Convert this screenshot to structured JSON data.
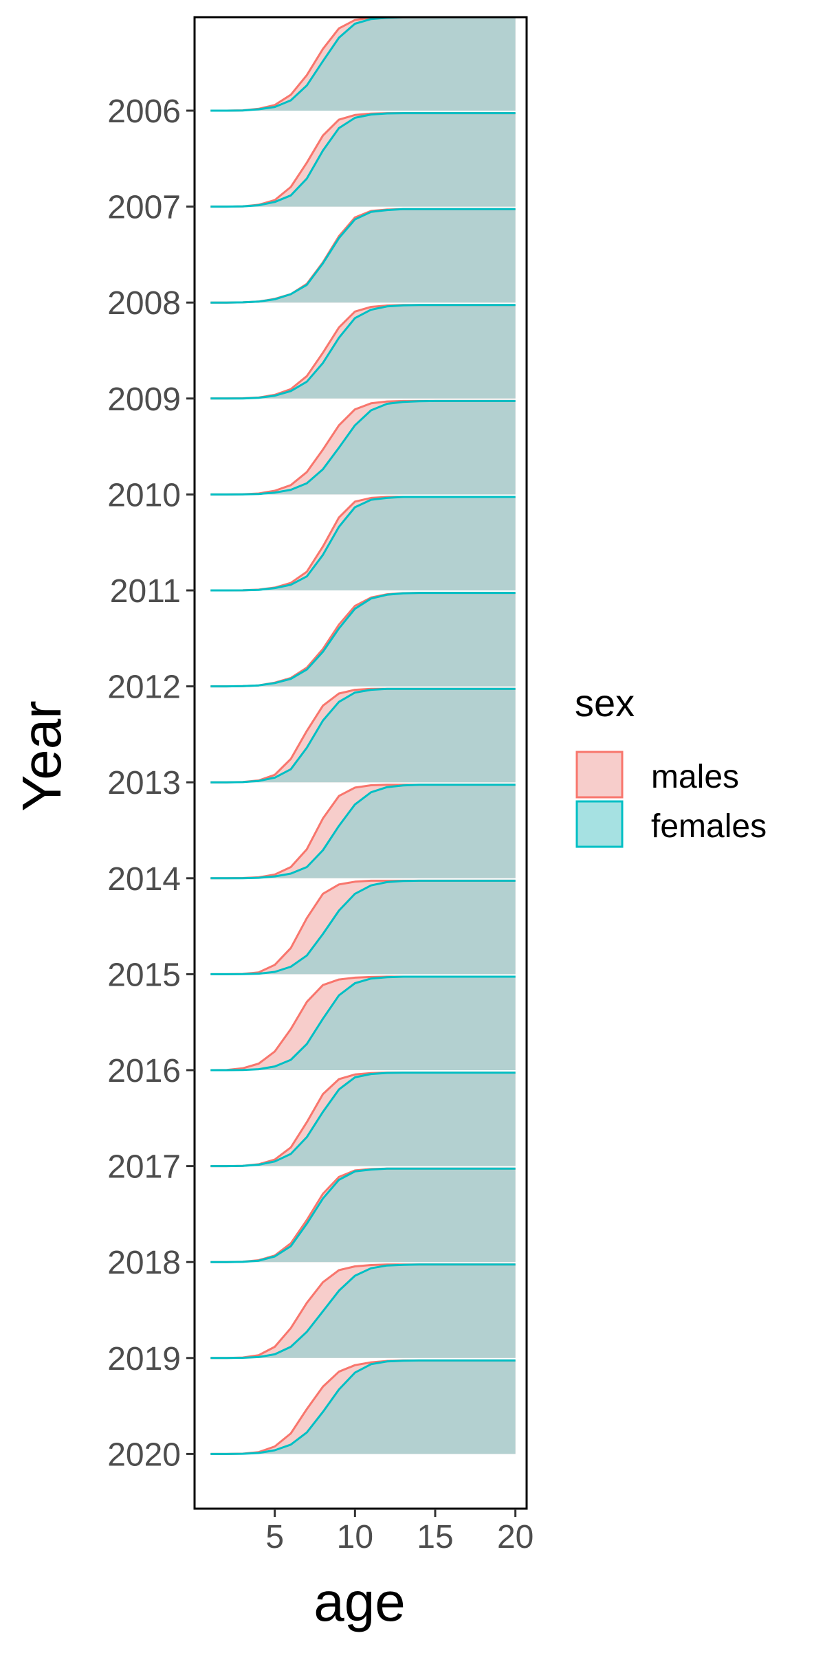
{
  "chart_data": {
    "type": "area",
    "subtype": "ridgeline",
    "title": "",
    "xlabel": "age",
    "ylabel": "Year",
    "x_ticks": [
      5,
      10,
      15,
      20
    ],
    "xlim": [
      0,
      20.7
    ],
    "years": [
      "2006",
      "2007",
      "2008",
      "2009",
      "2010",
      "2011",
      "2012",
      "2013",
      "2014",
      "2015",
      "2016",
      "2017",
      "2018",
      "2019",
      "2020"
    ],
    "ages": [
      1,
      2,
      3,
      4,
      5,
      6,
      7,
      8,
      9,
      10,
      11,
      12,
      13,
      14,
      15,
      16,
      17,
      18,
      19,
      20
    ],
    "legend": {
      "title": "sex",
      "position": "right",
      "entries": [
        {
          "name": "males",
          "line_color": "#F8766D",
          "fill_color": "#F7CDCB"
        },
        {
          "name": "females",
          "line_color": "#00BFC4",
          "fill_color": "#A6E1E2"
        }
      ]
    },
    "overlap_fill_color": "#B3D0D0",
    "series": [
      {
        "year": "2006",
        "males": [
          0,
          0,
          0.003,
          0.02,
          0.06,
          0.17,
          0.38,
          0.66,
          0.88,
          0.97,
          0.995,
          1,
          1,
          1,
          1,
          1,
          1,
          1,
          1,
          1
        ],
        "females": [
          0,
          0,
          0.002,
          0.015,
          0.04,
          0.11,
          0.27,
          0.53,
          0.78,
          0.93,
          0.98,
          0.995,
          1,
          1,
          1,
          1,
          1,
          1,
          1,
          1
        ]
      },
      {
        "year": "2007",
        "males": [
          0,
          0,
          0.003,
          0.02,
          0.07,
          0.21,
          0.47,
          0.76,
          0.93,
          0.98,
          0.995,
          1,
          1,
          1,
          1,
          1,
          1,
          1,
          1,
          1
        ],
        "females": [
          0,
          0,
          0.002,
          0.015,
          0.05,
          0.12,
          0.3,
          0.6,
          0.84,
          0.95,
          0.985,
          0.997,
          1,
          1,
          1,
          1,
          1,
          1,
          1,
          1
        ]
      },
      {
        "year": "2008",
        "males": [
          0,
          0,
          0.002,
          0.01,
          0.04,
          0.09,
          0.2,
          0.43,
          0.71,
          0.91,
          0.98,
          0.995,
          1,
          1,
          1,
          1,
          1,
          1,
          1,
          1
        ],
        "females": [
          0,
          0,
          0.002,
          0.01,
          0.035,
          0.09,
          0.19,
          0.42,
          0.69,
          0.89,
          0.97,
          0.99,
          1,
          1,
          1,
          1,
          1,
          1,
          1,
          1
        ]
      },
      {
        "year": "2009",
        "males": [
          0,
          0,
          0.002,
          0.01,
          0.04,
          0.1,
          0.24,
          0.49,
          0.76,
          0.93,
          0.98,
          0.995,
          1,
          1,
          1,
          1,
          1,
          1,
          1,
          1
        ],
        "females": [
          0,
          0,
          0.001,
          0.008,
          0.03,
          0.08,
          0.18,
          0.38,
          0.65,
          0.86,
          0.95,
          0.985,
          0.997,
          1,
          1,
          1,
          1,
          1,
          1,
          1
        ]
      },
      {
        "year": "2010",
        "males": [
          0,
          0,
          0.002,
          0.01,
          0.04,
          0.1,
          0.24,
          0.48,
          0.74,
          0.91,
          0.975,
          0.995,
          1,
          1,
          1,
          1,
          1,
          1,
          1,
          1
        ],
        "females": [
          0,
          0,
          0.001,
          0.005,
          0.02,
          0.05,
          0.12,
          0.27,
          0.5,
          0.74,
          0.9,
          0.97,
          0.99,
          0.997,
          1,
          1,
          1,
          1,
          1,
          1
        ]
      },
      {
        "year": "2011",
        "males": [
          0,
          0,
          0.001,
          0.008,
          0.03,
          0.08,
          0.2,
          0.47,
          0.78,
          0.95,
          0.99,
          1,
          1,
          1,
          1,
          1,
          1,
          1,
          1,
          1
        ],
        "females": [
          0,
          0,
          0.001,
          0.006,
          0.025,
          0.06,
          0.15,
          0.38,
          0.68,
          0.89,
          0.97,
          0.99,
          1,
          1,
          1,
          1,
          1,
          1,
          1,
          1
        ]
      },
      {
        "year": "2012",
        "males": [
          0,
          0,
          0.002,
          0.01,
          0.04,
          0.09,
          0.2,
          0.4,
          0.66,
          0.86,
          0.95,
          0.985,
          0.997,
          1,
          1,
          1,
          1,
          1,
          1,
          1
        ],
        "females": [
          0,
          0,
          0.002,
          0.01,
          0.035,
          0.08,
          0.18,
          0.37,
          0.62,
          0.83,
          0.94,
          0.98,
          0.995,
          1,
          1,
          1,
          1,
          1,
          1,
          1
        ]
      },
      {
        "year": "2013",
        "males": [
          0,
          0,
          0.003,
          0.02,
          0.08,
          0.25,
          0.55,
          0.82,
          0.95,
          0.99,
          1,
          1,
          1,
          1,
          1,
          1,
          1,
          1,
          1,
          1
        ],
        "females": [
          0,
          0,
          0.002,
          0.015,
          0.05,
          0.14,
          0.37,
          0.66,
          0.86,
          0.96,
          0.99,
          1,
          1,
          1,
          1,
          1,
          1,
          1,
          1,
          1
        ]
      },
      {
        "year": "2014",
        "males": [
          0,
          0,
          0.002,
          0.01,
          0.04,
          0.12,
          0.31,
          0.64,
          0.88,
          0.97,
          0.995,
          1,
          1,
          1,
          1,
          1,
          1,
          1,
          1,
          1
        ],
        "females": [
          0,
          0,
          0.001,
          0.005,
          0.02,
          0.05,
          0.12,
          0.3,
          0.56,
          0.79,
          0.92,
          0.975,
          0.993,
          1,
          1,
          1,
          1,
          1,
          1,
          1
        ]
      },
      {
        "year": "2015",
        "males": [
          0,
          0,
          0.003,
          0.02,
          0.1,
          0.28,
          0.6,
          0.86,
          0.96,
          0.99,
          1,
          1,
          1,
          1,
          1,
          1,
          1,
          1,
          1,
          1
        ],
        "females": [
          0,
          0,
          0.001,
          0.006,
          0.025,
          0.08,
          0.2,
          0.43,
          0.68,
          0.86,
          0.95,
          0.985,
          0.997,
          1,
          1,
          1,
          1,
          1,
          1,
          1
        ]
      },
      {
        "year": "2016",
        "males": [
          0,
          0.002,
          0.02,
          0.07,
          0.2,
          0.44,
          0.73,
          0.91,
          0.97,
          0.99,
          0.997,
          1,
          1,
          1,
          1,
          1,
          1,
          1,
          1,
          1
        ],
        "females": [
          0,
          0,
          0.002,
          0.01,
          0.04,
          0.11,
          0.28,
          0.55,
          0.8,
          0.93,
          0.98,
          0.995,
          1,
          1,
          1,
          1,
          1,
          1,
          1,
          1
        ]
      },
      {
        "year": "2017",
        "males": [
          0,
          0,
          0.003,
          0.02,
          0.07,
          0.2,
          0.47,
          0.77,
          0.93,
          0.98,
          0.995,
          1,
          1,
          1,
          1,
          1,
          1,
          1,
          1,
          1
        ],
        "females": [
          0,
          0,
          0.002,
          0.015,
          0.05,
          0.13,
          0.31,
          0.58,
          0.82,
          0.95,
          0.985,
          0.997,
          1,
          1,
          1,
          1,
          1,
          1,
          1,
          1
        ]
      },
      {
        "year": "2018",
        "males": [
          0,
          0,
          0.003,
          0.02,
          0.07,
          0.2,
          0.45,
          0.73,
          0.91,
          0.98,
          0.995,
          1,
          1,
          1,
          1,
          1,
          1,
          1,
          1,
          1
        ],
        "females": [
          0,
          0,
          0.002,
          0.015,
          0.06,
          0.17,
          0.41,
          0.68,
          0.88,
          0.97,
          0.99,
          1,
          1,
          1,
          1,
          1,
          1,
          1,
          1,
          1
        ]
      },
      {
        "year": "2019",
        "males": [
          0,
          0,
          0.005,
          0.03,
          0.12,
          0.32,
          0.59,
          0.81,
          0.94,
          0.98,
          0.995,
          1,
          1,
          1,
          1,
          1,
          1,
          1,
          1,
          1
        ],
        "females": [
          0,
          0,
          0.002,
          0.01,
          0.04,
          0.12,
          0.28,
          0.5,
          0.72,
          0.88,
          0.96,
          0.99,
          0.997,
          1,
          1,
          1,
          1,
          1,
          1,
          1
        ]
      },
      {
        "year": "2020",
        "males": [
          0,
          0,
          0.003,
          0.02,
          0.08,
          0.22,
          0.48,
          0.72,
          0.88,
          0.95,
          0.98,
          0.995,
          1,
          1,
          1,
          1,
          1,
          1,
          1,
          1
        ],
        "females": [
          0,
          0,
          0.002,
          0.01,
          0.04,
          0.1,
          0.23,
          0.45,
          0.69,
          0.87,
          0.96,
          0.99,
          0.997,
          1,
          1,
          1,
          1,
          1,
          1,
          1
        ]
      }
    ]
  }
}
